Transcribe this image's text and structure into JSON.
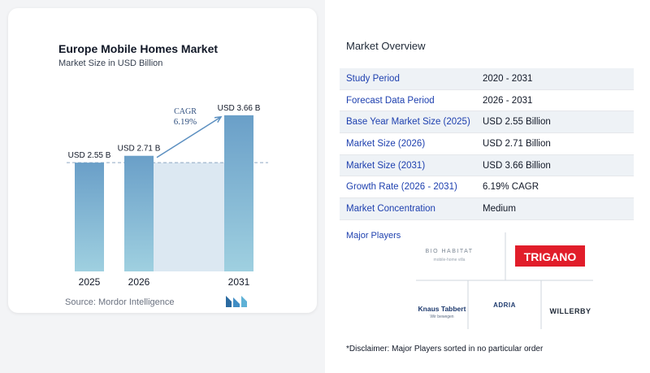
{
  "chart_card": {
    "title": "Europe Mobile Homes Market",
    "subtitle": "Market Size in USD Billion",
    "source": "Source:  Mordor Intelligence"
  },
  "chart_data": {
    "type": "bar",
    "title": "Europe Mobile Homes Market",
    "subtitle": "Market Size in USD Billion",
    "categories": [
      "2025",
      "2026",
      "2031"
    ],
    "values": [
      2.55,
      2.71,
      3.66
    ],
    "data_labels": [
      "USD 2.55 B",
      "USD 2.71 B",
      "USD 3.66 B"
    ],
    "annotation": {
      "label": "CAGR",
      "value": "6.19%"
    },
    "colors": {
      "bar_top": "#6a9fc8",
      "bar_bottom": "#9fd0e0",
      "arrow": "#5b8fc0",
      "band": "#dce8f2",
      "label": "#2f4f7f"
    }
  },
  "overview": {
    "title": "Market Overview",
    "rows": [
      {
        "label": "Study Period",
        "value": "2020 - 2031"
      },
      {
        "label": "Forecast Data Period",
        "value": "2026 - 2031"
      },
      {
        "label": "Base Year Market Size (2025)",
        "value": "USD 2.55 Billion"
      },
      {
        "label": "Market Size (2026)",
        "value": "USD 2.71 Billion"
      },
      {
        "label": "Market Size (2031)",
        "value": "USD 3.66 Billion"
      },
      {
        "label": "Growth Rate (2026 - 2031)",
        "value": "6.19% CAGR"
      },
      {
        "label": "Market Concentration",
        "value": "Medium"
      }
    ],
    "players_title": "Major Players",
    "players": [
      {
        "name": "BIO HABITAT",
        "tagline": "mobile-home villa"
      },
      {
        "name": "TRIGANO"
      },
      {
        "name": "Knaus Tabbert",
        "tagline": "Wir bewegen"
      },
      {
        "name": "ADRIA"
      },
      {
        "name": "WILLERBY"
      }
    ],
    "disclaimer": "*Disclaimer: Major Players sorted in no particular order"
  }
}
